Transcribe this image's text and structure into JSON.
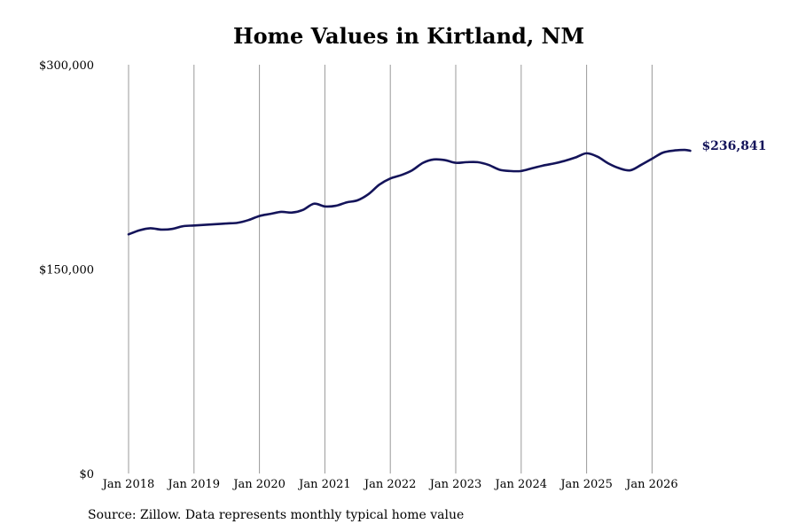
{
  "title": "Home Values in Kirtland, NM",
  "source": "Source: Zillow. Data represents monthly typical home value",
  "chart_data": {
    "type": "line",
    "title": "Home Values in Kirtland, NM",
    "xlabel": "",
    "ylabel": "",
    "ylim": [
      0,
      300000
    ],
    "grid": "vertical",
    "line_color": "#14145a",
    "gridline_color": "#999999",
    "x_ticks": [
      "Jan 2018",
      "Jan 2019",
      "Jan 2020",
      "Jan 2021",
      "Jan 2022",
      "Jan 2023",
      "Jan 2024",
      "Jan 2025",
      "Jan 2026"
    ],
    "y_ticks": [
      {
        "value": 0,
        "label": "$0"
      },
      {
        "value": 150000,
        "label": "$150,000"
      },
      {
        "value": 300000,
        "label": "$300,000"
      }
    ],
    "end_label": "$236,841",
    "series": [
      {
        "points": [
          [
            "2018-01",
            175500
          ],
          [
            "2018-03",
            178500
          ],
          [
            "2018-05",
            180000
          ],
          [
            "2018-07",
            179000
          ],
          [
            "2018-09",
            179500
          ],
          [
            "2018-11",
            181500
          ],
          [
            "2019-01",
            182000
          ],
          [
            "2019-03",
            182500
          ],
          [
            "2019-05",
            183000
          ],
          [
            "2019-07",
            183500
          ],
          [
            "2019-09",
            184000
          ],
          [
            "2019-11",
            186000
          ],
          [
            "2020-01",
            189000
          ],
          [
            "2020-03",
            190500
          ],
          [
            "2020-05",
            192000
          ],
          [
            "2020-07",
            191500
          ],
          [
            "2020-09",
            193500
          ],
          [
            "2020-11",
            198000
          ],
          [
            "2021-01",
            196000
          ],
          [
            "2021-03",
            196500
          ],
          [
            "2021-05",
            199000
          ],
          [
            "2021-07",
            200500
          ],
          [
            "2021-09",
            205000
          ],
          [
            "2021-11",
            212000
          ],
          [
            "2022-01",
            216500
          ],
          [
            "2022-03",
            219000
          ],
          [
            "2022-05",
            222500
          ],
          [
            "2022-07",
            228000
          ],
          [
            "2022-09",
            230500
          ],
          [
            "2022-11",
            230000
          ],
          [
            "2023-01",
            228000
          ],
          [
            "2023-03",
            228500
          ],
          [
            "2023-05",
            228500
          ],
          [
            "2023-07",
            226500
          ],
          [
            "2023-09",
            223000
          ],
          [
            "2023-11",
            222000
          ],
          [
            "2024-01",
            222000
          ],
          [
            "2024-03",
            224000
          ],
          [
            "2024-05",
            226000
          ],
          [
            "2024-07",
            227500
          ],
          [
            "2024-09",
            229500
          ],
          [
            "2024-11",
            232000
          ],
          [
            "2025-01",
            235000
          ],
          [
            "2025-03",
            232500
          ],
          [
            "2025-05",
            227500
          ],
          [
            "2025-07",
            224000
          ],
          [
            "2025-09",
            222500
          ],
          [
            "2025-11",
            226500
          ],
          [
            "2026-01",
            231000
          ],
          [
            "2026-03",
            235500
          ],
          [
            "2026-05",
            237000
          ],
          [
            "2026-07",
            237500
          ],
          [
            "2026-08",
            236841
          ]
        ]
      }
    ]
  }
}
